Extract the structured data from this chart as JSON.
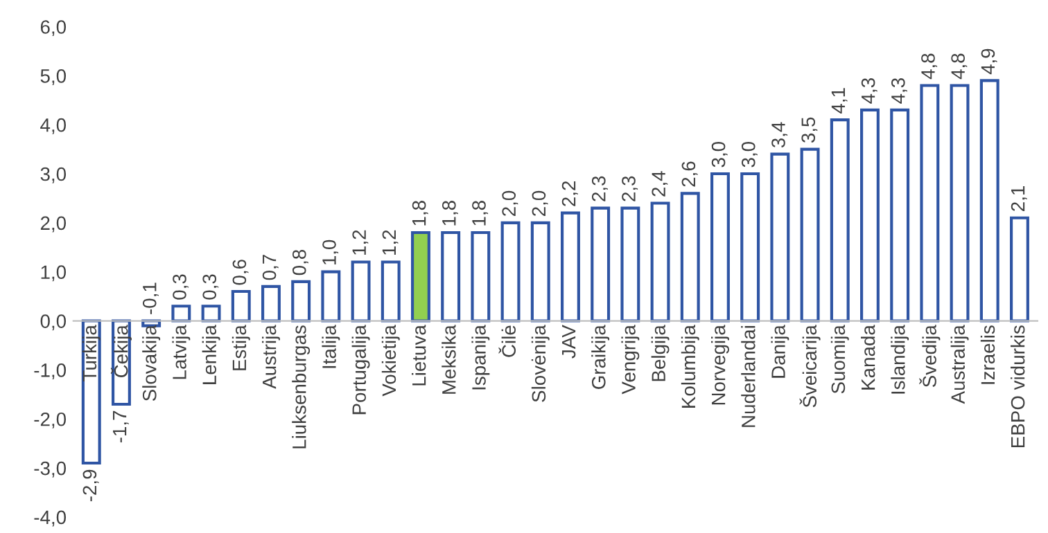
{
  "chart_data": {
    "type": "bar",
    "categories": [
      "Turkija",
      "Čekija",
      "Slovakija",
      "Latvija",
      "Lenkija",
      "Estija",
      "Austrija",
      "Liuksenburgas",
      "Italija",
      "Portugalija",
      "Vokietija",
      "Lietuva",
      "Meksika",
      "Ispanija",
      "Čilė",
      "Slovėnija",
      "JAV",
      "Graikija",
      "Vengrija",
      "Belgija",
      "Kolumbija",
      "Norvegija",
      "Nuderlandai",
      "Danija",
      "Šveicarija",
      "Suomija",
      "Kanada",
      "Islandija",
      "Švedija",
      "Australija",
      "Izraelis",
      "EBPO vidurkis"
    ],
    "values": [
      -2.9,
      -1.7,
      -0.1,
      0.3,
      0.3,
      0.6,
      0.7,
      0.8,
      1.0,
      1.2,
      1.2,
      1.8,
      1.8,
      1.8,
      2.0,
      2.0,
      2.2,
      2.3,
      2.3,
      2.4,
      2.6,
      3.0,
      3.0,
      3.4,
      3.5,
      4.1,
      4.3,
      4.3,
      4.8,
      4.8,
      4.9,
      2.1
    ],
    "value_labels": [
      "-2,9",
      "-1,7",
      "-0,1",
      "0,3",
      "0,3",
      "0,6",
      "0,7",
      "0,8",
      "1,0",
      "1,2",
      "1,2",
      "1,8",
      "1,8",
      "1,8",
      "2,0",
      "2,0",
      "2,2",
      "2,3",
      "2,3",
      "2,4",
      "2,6",
      "3,0",
      "3,0",
      "3,4",
      "3,5",
      "4,1",
      "4,3",
      "4,3",
      "4,8",
      "4,8",
      "4,9",
      "2,1"
    ],
    "color": "#2f55a4",
    "colors": [
      "#ffffff",
      "#ffffff",
      "#ffffff",
      "#ffffff",
      "#ffffff",
      "#ffffff",
      "#ffffff",
      "#ffffff",
      "#ffffff",
      "#ffffff",
      "#ffffff",
      "#92d050",
      "#ffffff",
      "#ffffff",
      "#ffffff",
      "#ffffff",
      "#ffffff",
      "#ffffff",
      "#ffffff",
      "#ffffff",
      "#ffffff",
      "#ffffff",
      "#ffffff",
      "#ffffff",
      "#ffffff",
      "#ffffff",
      "#ffffff",
      "#ffffff",
      "#ffffff",
      "#ffffff",
      "#ffffff",
      "#ffffff"
    ],
    "ylim": [
      -4,
      6
    ],
    "yticks": [
      {
        "value": -4,
        "label": "-4,0"
      },
      {
        "value": -3,
        "label": "-3,0"
      },
      {
        "value": -2,
        "label": "-2,0"
      },
      {
        "value": -1,
        "label": "-1,0"
      },
      {
        "value": 0,
        "label": "0,0"
      },
      {
        "value": 1,
        "label": "1,0"
      },
      {
        "value": 2,
        "label": "2,0"
      },
      {
        "value": 3,
        "label": "3,0"
      },
      {
        "value": 4,
        "label": "4,0"
      },
      {
        "value": 5,
        "label": "5,0"
      },
      {
        "value": 6,
        "label": "6,0"
      }
    ],
    "grid": false
  }
}
